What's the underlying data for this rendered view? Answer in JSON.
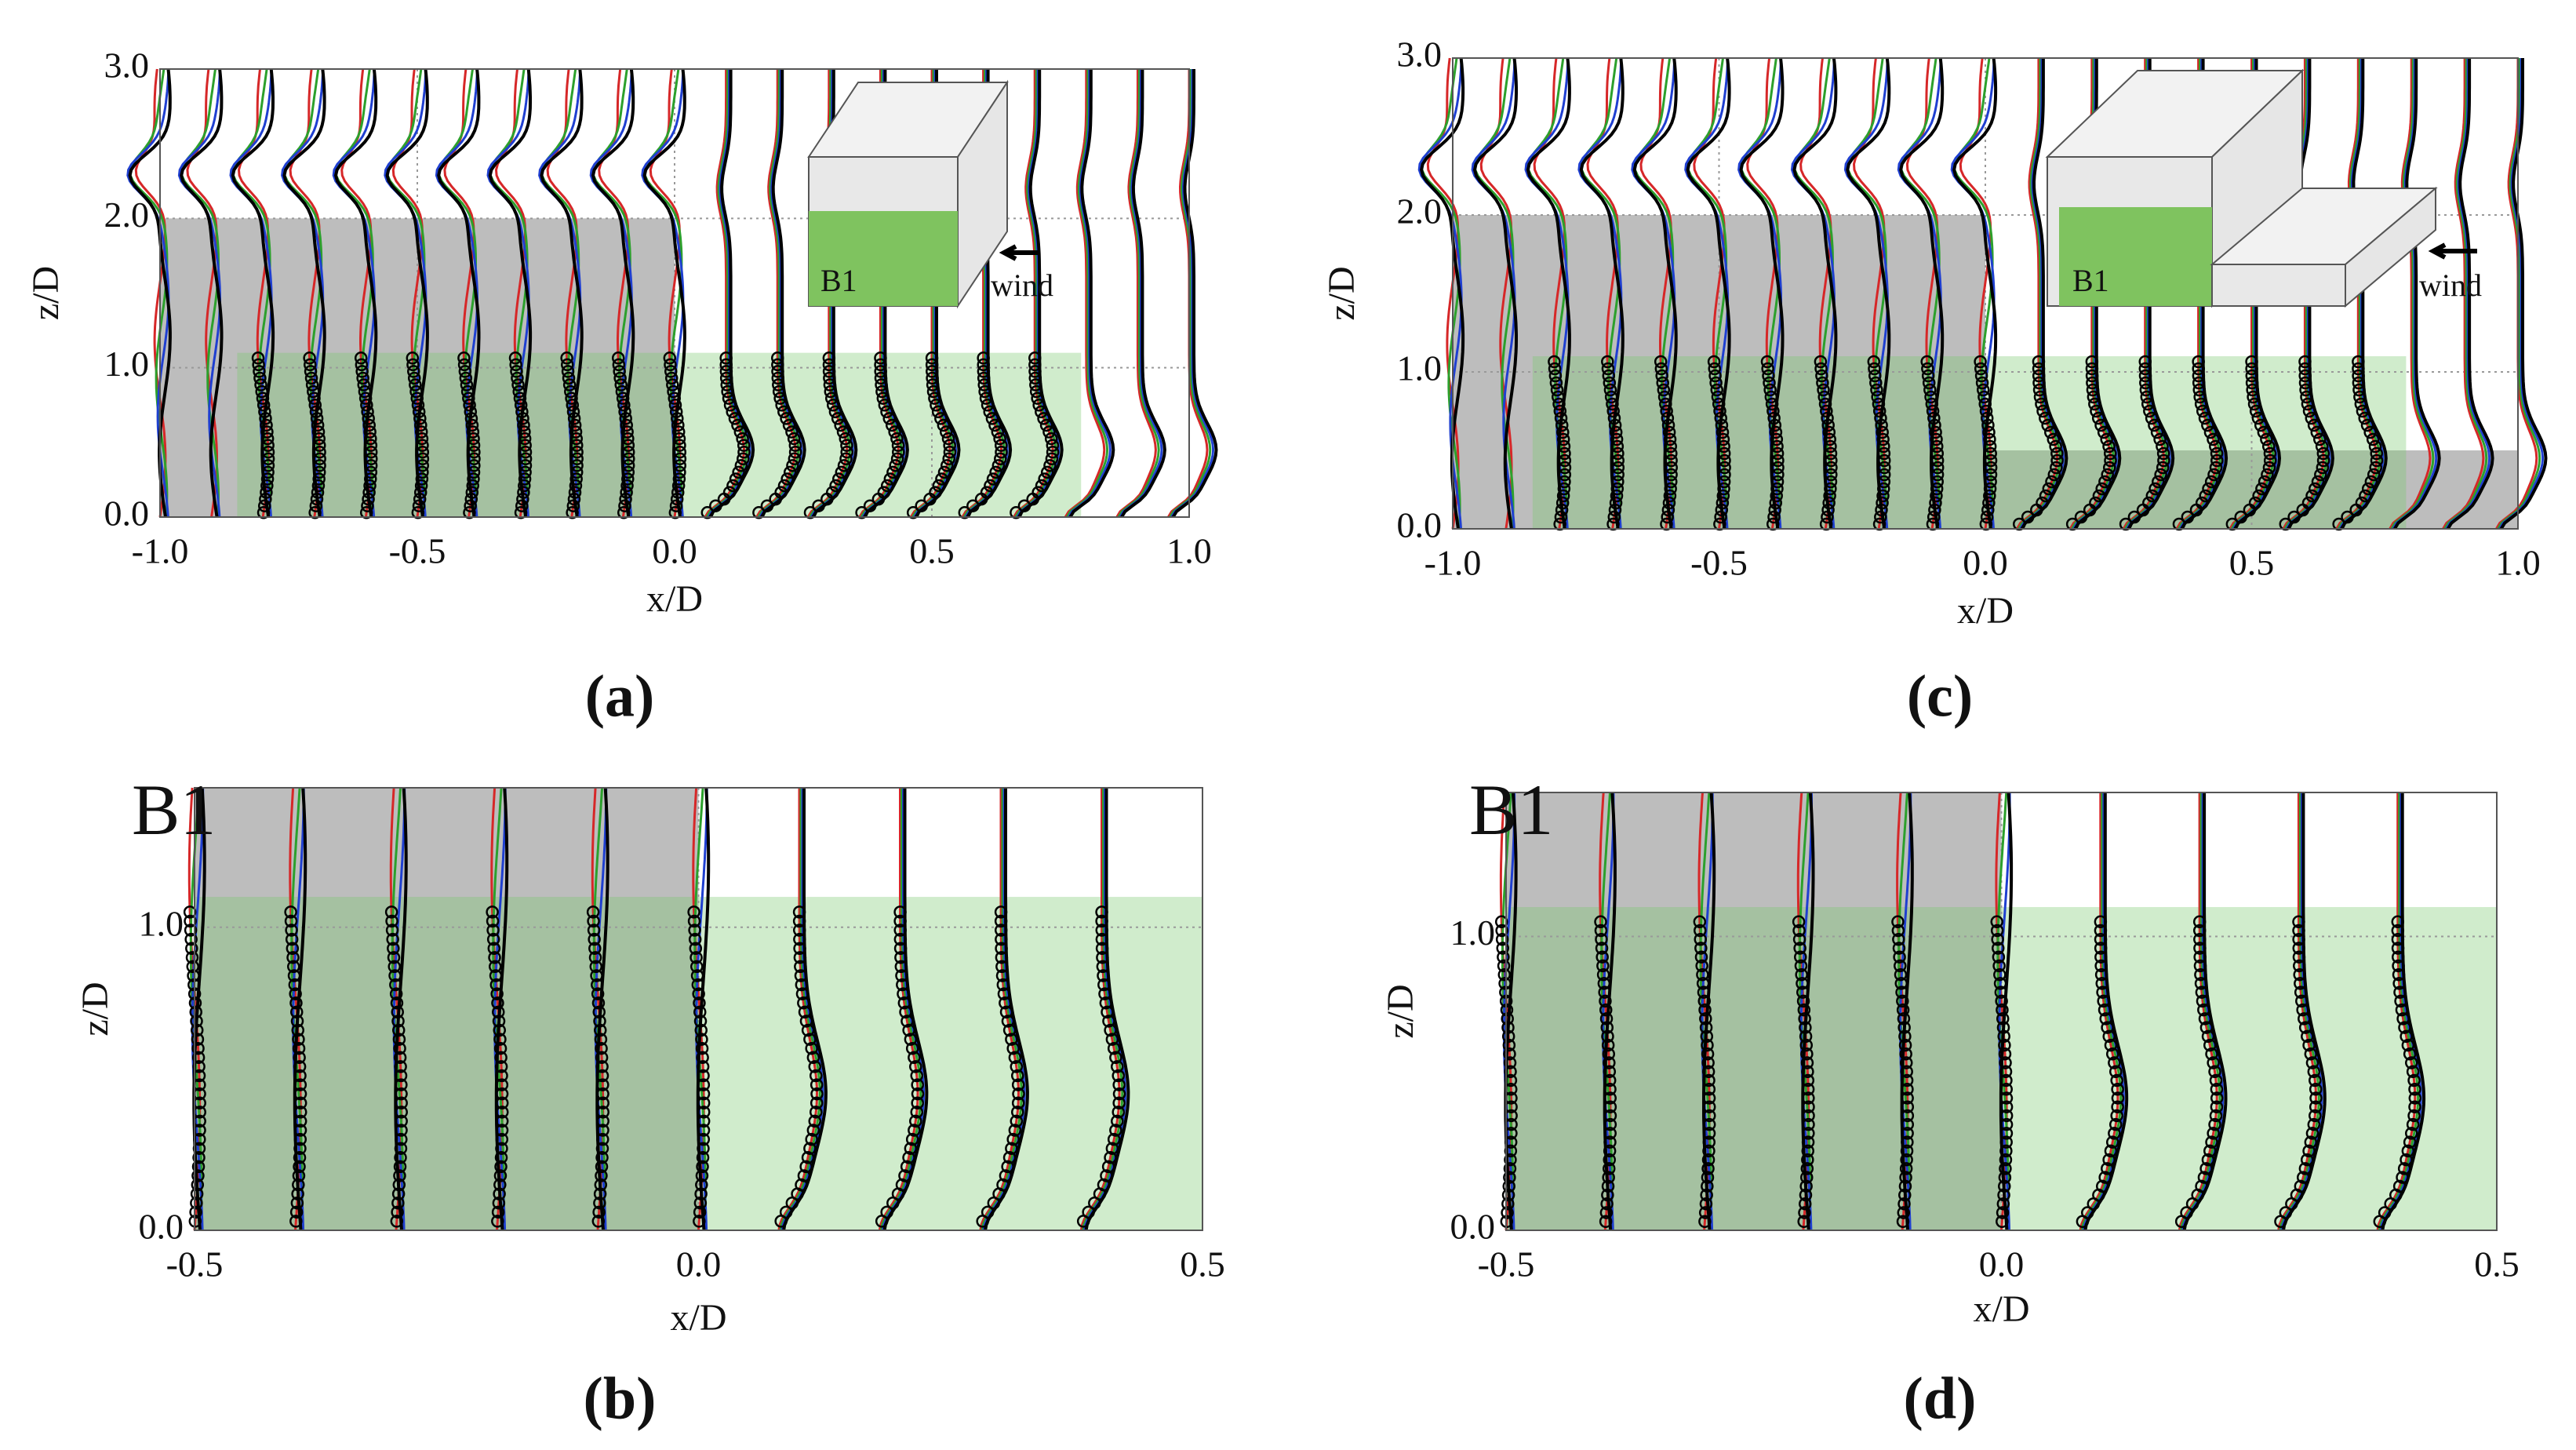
{
  "chart_data": [
    {
      "type": "profile",
      "title": "(a)",
      "xlabel": "x/D",
      "ylabel": "z/D",
      "xlim": [
        -1.0,
        1.0
      ],
      "ylim": [
        0,
        3.0
      ],
      "xticks": [
        {
          "value": -1.0,
          "label": "-1.0"
        },
        {
          "value": -0.5,
          "label": "-0.5"
        },
        {
          "value": 0.0,
          "label": "0.0"
        },
        {
          "value": 0.5,
          "label": "0.5"
        },
        {
          "value": 1.0,
          "label": "1.0"
        }
      ],
      "yticks": [
        {
          "value": 0.0,
          "label": "0.0"
        },
        {
          "value": 1.0,
          "label": "1.0"
        },
        {
          "value": 2.0,
          "label": "2.0"
        },
        {
          "value": 3.0,
          "label": "3.0"
        }
      ],
      "stations": [
        -1.0,
        -0.9,
        -0.8,
        -0.7,
        -0.6,
        -0.5,
        -0.4,
        -0.3,
        -0.2,
        -0.1,
        0.0,
        0.1,
        0.2,
        0.3,
        0.4,
        0.5,
        0.6,
        0.7,
        0.8,
        0.9,
        1.0
      ],
      "regions": [
        {
          "x": [
            -1.0,
            0.0
          ],
          "z": [
            0,
            2.0
          ],
          "color": "#bdbdbd"
        },
        {
          "x": [
            -0.85,
            0.79
          ],
          "z": [
            0,
            1.1
          ],
          "color": "rgba(120,200,110,0.35)"
        }
      ],
      "annotations": [
        "B1",
        "wind"
      ],
      "grid": true
    },
    {
      "type": "profile",
      "title": "(c)",
      "xlabel": "x/D",
      "ylabel": "z/D",
      "xlim": [
        -1.0,
        1.0
      ],
      "ylim": [
        0,
        3.0
      ],
      "xticks": [
        {
          "value": -1.0,
          "label": "-1.0"
        },
        {
          "value": -0.5,
          "label": "-0.5"
        },
        {
          "value": 0.0,
          "label": "0.0"
        },
        {
          "value": 0.5,
          "label": "0.5"
        },
        {
          "value": 1.0,
          "label": "1.0"
        }
      ],
      "yticks": [
        {
          "value": 0.0,
          "label": "0.0"
        },
        {
          "value": 1.0,
          "label": "1.0"
        },
        {
          "value": 2.0,
          "label": "2.0"
        },
        {
          "value": 3.0,
          "label": "3.0"
        }
      ],
      "stations": [
        -1.0,
        -0.9,
        -0.8,
        -0.7,
        -0.6,
        -0.5,
        -0.4,
        -0.3,
        -0.2,
        -0.1,
        0.0,
        0.1,
        0.2,
        0.3,
        0.4,
        0.5,
        0.6,
        0.7,
        0.8,
        0.9,
        1.0
      ],
      "regions": [
        {
          "x": [
            -1.0,
            0.0
          ],
          "z": [
            0,
            2.0
          ],
          "color": "#bdbdbd"
        },
        {
          "x": [
            0.0,
            1.0
          ],
          "z": [
            0,
            0.5
          ],
          "color": "#bdbdbd"
        },
        {
          "x": [
            -0.85,
            0.79
          ],
          "z": [
            0,
            1.1
          ],
          "color": "rgba(120,200,110,0.35)"
        }
      ],
      "annotations": [
        "B1",
        "wind"
      ],
      "grid": true
    },
    {
      "type": "profile",
      "title": "(b)",
      "xlabel": "x/D",
      "ylabel": "z/D",
      "xlim": [
        -0.5,
        0.5
      ],
      "ylim": [
        0,
        1.46
      ],
      "xticks": [
        {
          "value": -0.5,
          "label": "-0.5"
        },
        {
          "value": 0.0,
          "label": "0.0"
        },
        {
          "value": 0.5,
          "label": "0.5"
        }
      ],
      "yticks": [
        {
          "value": 0.0,
          "label": "0.0"
        },
        {
          "value": 1.0,
          "label": "1.0"
        }
      ],
      "stations": [
        -0.5,
        -0.4,
        -0.3,
        -0.2,
        -0.1,
        0.0,
        0.1,
        0.2,
        0.3,
        0.4
      ],
      "regions": [
        {
          "x": [
            -0.5,
            0.0
          ],
          "z": [
            0,
            1.46
          ],
          "color": "#bdbdbd"
        },
        {
          "x": [
            -0.5,
            0.5
          ],
          "z": [
            0,
            1.1
          ],
          "color": "rgba(120,200,110,0.35)"
        }
      ],
      "corner_label": "B1",
      "grid": true
    },
    {
      "type": "profile",
      "title": "(d)",
      "xlabel": "x/D",
      "ylabel": "z/D",
      "xlim": [
        -0.5,
        0.5
      ],
      "ylim": [
        0,
        1.49
      ],
      "xticks": [
        {
          "value": -0.5,
          "label": "-0.5"
        },
        {
          "value": 0.0,
          "label": "0.0"
        },
        {
          "value": 0.5,
          "label": "0.5"
        }
      ],
      "yticks": [
        {
          "value": 0.0,
          "label": "0.0"
        },
        {
          "value": 1.0,
          "label": "1.0"
        }
      ],
      "stations": [
        -0.5,
        -0.4,
        -0.3,
        -0.2,
        -0.1,
        0.0,
        0.1,
        0.2,
        0.3,
        0.4
      ],
      "regions": [
        {
          "x": [
            -0.5,
            0.0
          ],
          "z": [
            0,
            1.49
          ],
          "color": "#bdbdbd"
        },
        {
          "x": [
            -0.5,
            0.5
          ],
          "z": [
            0,
            1.1
          ],
          "color": "rgba(120,200,110,0.35)"
        }
      ],
      "corner_label": "B1",
      "grid": true
    }
  ]
}
